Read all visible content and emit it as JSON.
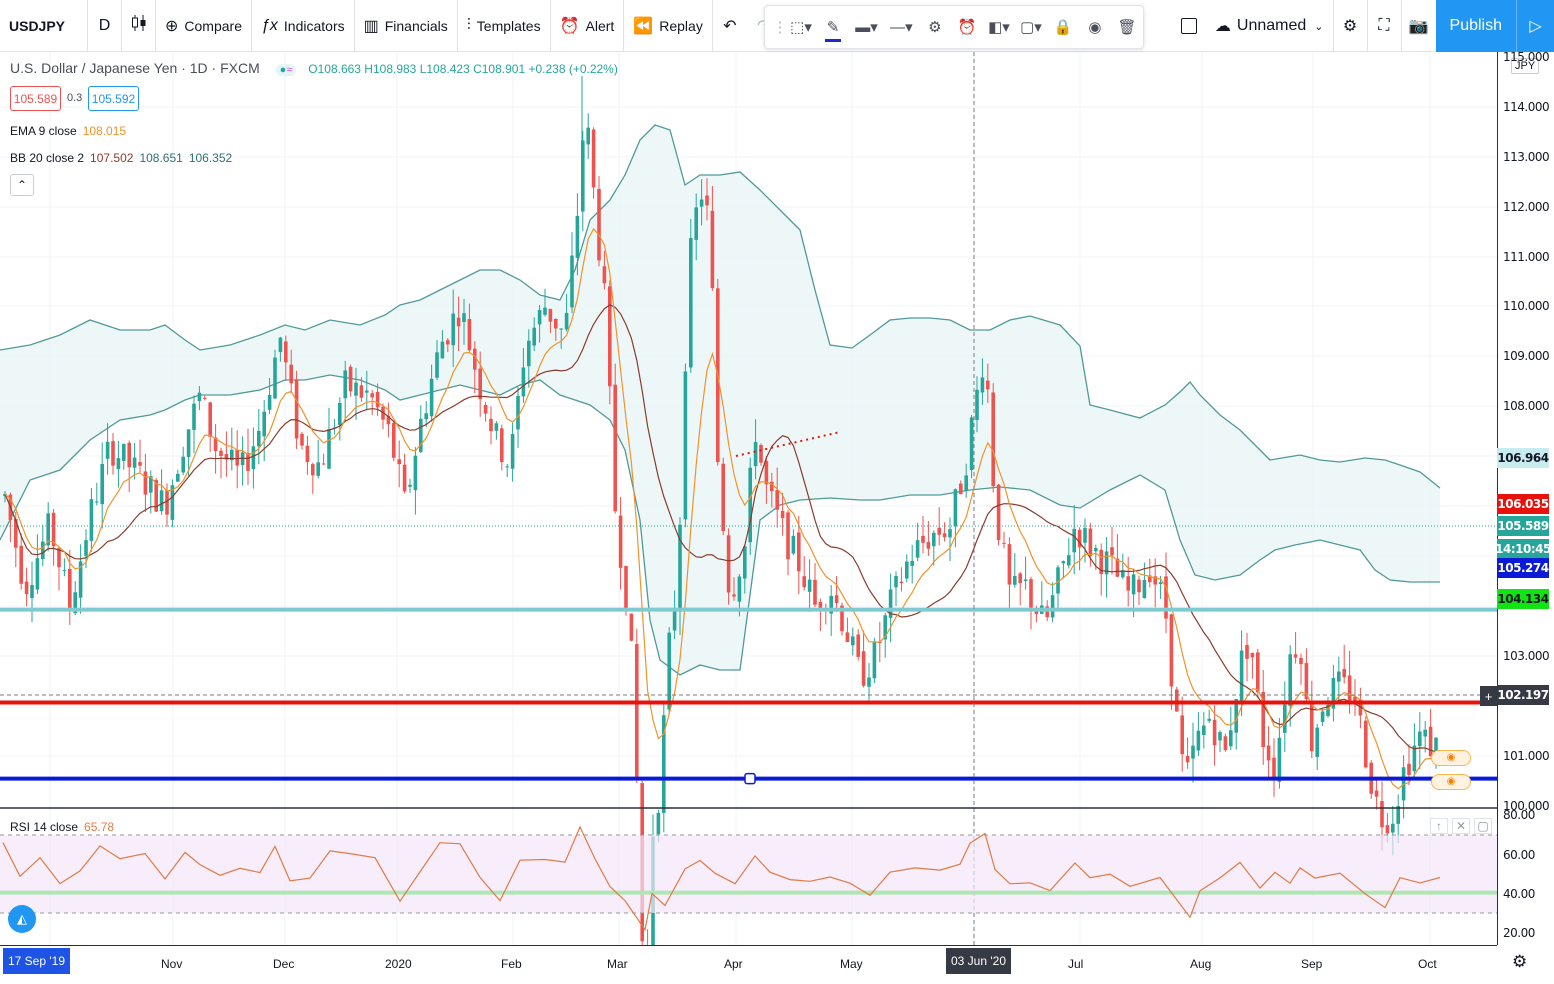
{
  "toolbar": {
    "symbol": "USDJPY",
    "interval": "D",
    "compare": "Compare",
    "indicators": "Indicators",
    "financials": "Financials",
    "templates": "Templates",
    "alert": "Alert",
    "replay": "Replay",
    "layout_name": "Unnamed",
    "publish": "Publish"
  },
  "legend": {
    "title": "U.S. Dollar / Japanese Yen · 1D · FXCM",
    "ohlc": "O108.663 H108.983 L108.423 C108.901 +0.238 (+0.22%)",
    "bid": "105.589",
    "spread": "0.3",
    "ask": "105.592",
    "ema_label": "EMA 9 close",
    "ema_value": "108.015",
    "bb_label": "BB 20 close 2",
    "bb_basis": "107.502",
    "bb_upper": "108.651",
    "bb_lower": "106.352",
    "rsi_label": "RSI 14 close",
    "rsi_value": "65.78"
  },
  "price_axis": {
    "currency": "JPY",
    "labels": [
      "115.000",
      "114.000",
      "113.000",
      "112.000",
      "111.000",
      "110.000",
      "109.000",
      "108.000",
      "103.000",
      "101.000",
      "100.000"
    ],
    "tags": [
      {
        "text": "106.964",
        "color": "#c9ecf0",
        "text_color": "#131722"
      },
      {
        "text": "106.035",
        "color": "#e8120c",
        "text_color": "#ffffff"
      },
      {
        "text": "105.589",
        "color": "#26a69a",
        "text_color": "#ffffff"
      },
      {
        "text": "14:10:45",
        "color": "#26a69a",
        "text_color": "#ffffff"
      },
      {
        "text": "105.274",
        "color": "#0a1ad6",
        "text_color": "#ffffff"
      },
      {
        "text": "104.134",
        "color": "#12e312",
        "text_color": "#131722"
      },
      {
        "text": "102.197",
        "color": "#363a45",
        "text_color": "#ffffff"
      }
    ],
    "rsi_labels": [
      "80.00",
      "60.00",
      "40.00",
      "20.00"
    ]
  },
  "time_axis": {
    "start_tag": "17 Sep '19",
    "cursor_tag": "03 Jun '20",
    "labels": [
      "Nov",
      "Dec",
      "2020",
      "Feb",
      "Mar",
      "Apr",
      "May",
      "Jul",
      "Aug",
      "Sep",
      "Oct"
    ]
  },
  "horizontal_lines": [
    {
      "name": "resistance-cyan",
      "price": 106.964,
      "color": "#7fc9d1"
    },
    {
      "name": "resistance-red",
      "price": 106.035,
      "color": "#e8120c"
    },
    {
      "name": "support-blue",
      "price": 105.274,
      "color": "#0a1ad6"
    },
    {
      "name": "support-green",
      "price": 104.134,
      "color": "#12e312"
    }
  ],
  "colors": {
    "up": "#26a69a",
    "down": "#ef5350",
    "ema": "#f0932b",
    "bb_basis": "#8b3b2b",
    "bb_band": "#4f9a98",
    "rsi": "#e07b45",
    "rsi_band": "#f3e6fa"
  }
}
